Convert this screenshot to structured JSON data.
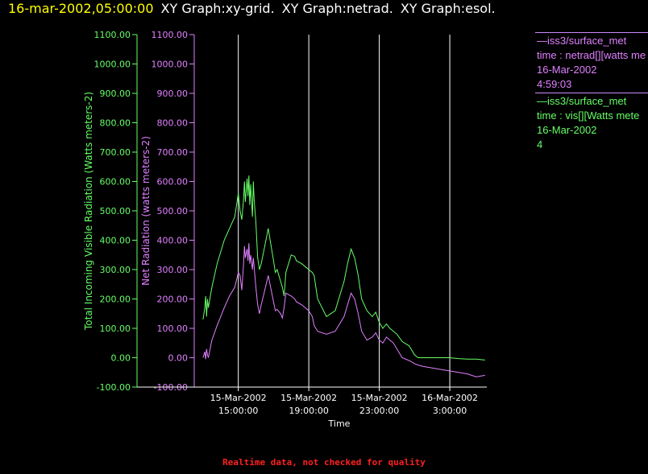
{
  "header": {
    "timestamp": "16-mar-2002,05:00:00",
    "segments": [
      "XY Graph:xy-grid.",
      "XY Graph:netrad.",
      "XY Graph:esol."
    ]
  },
  "legend": [
    {
      "line1": "iss3/surface_met",
      "line2": "time : netrad[][watts me",
      "line3": "16-Mar-2002",
      "line4": "4:59:03",
      "color": "#e080ff"
    },
    {
      "line1": "iss3/surface_met",
      "line2": "time : vis[][Watts mete",
      "line3": "16-Mar-2002",
      "line4": "4",
      "color": "#66ff66"
    }
  ],
  "footer": "Realtime data, not checked for quality",
  "chart_data": {
    "type": "line",
    "xlabel": "Time",
    "x_ticks": [
      {
        "hours": 0,
        "line1": "15-Mar-2002",
        "line2": "15:00:00"
      },
      {
        "hours": 4,
        "line1": "15-Mar-2002",
        "line2": "19:00:00"
      },
      {
        "hours": 8,
        "line1": "15-Mar-2002",
        "line2": "23:00:00"
      },
      {
        "hours": 12,
        "line1": "16-Mar-2002",
        "line2": "3:00:00"
      }
    ],
    "xlim_hours": [
      -2.5,
      14.1
    ],
    "ylim": [
      -100,
      1100
    ],
    "y_ticks": [
      "-100.00",
      "0.00",
      "100.00",
      "200.00",
      "300.00",
      "400.00",
      "500.00",
      "600.00",
      "700.00",
      "800.00",
      "900.00",
      "1000.00",
      "1100.00"
    ],
    "vertical_gridlines_hours": [
      0,
      4,
      8,
      12
    ],
    "left_axis": {
      "label": "Total Incoming Visible Radiation (Watts meters-2)",
      "color": "#66ff66"
    },
    "right_axis": {
      "label": "Net Radiation (watts meters-2)",
      "color": "#e080ff"
    },
    "series": [
      {
        "name": "vis",
        "color": "#66ff66",
        "x_hours": [
          -2.0,
          -1.9,
          -1.85,
          -1.8,
          -1.75,
          -1.7,
          -1.5,
          -1.2,
          -0.8,
          -0.5,
          -0.2,
          0.0,
          0.1,
          0.2,
          0.3,
          0.35,
          0.4,
          0.5,
          0.55,
          0.6,
          0.65,
          0.7,
          0.8,
          0.85,
          0.9,
          1.0,
          1.1,
          1.2,
          1.3,
          1.5,
          1.7,
          2.0,
          2.1,
          2.2,
          2.4,
          2.5,
          2.6,
          2.7,
          3.0,
          3.2,
          3.3,
          3.6,
          4.0,
          4.2,
          4.3,
          4.5,
          5.0,
          5.5,
          6.0,
          6.2,
          6.4,
          6.6,
          6.8,
          7.0,
          7.3,
          7.6,
          7.8,
          8.0,
          8.2,
          8.4,
          8.6,
          8.8,
          9.0,
          9.3,
          9.7,
          10.0,
          10.2,
          10.5,
          11.0,
          11.5,
          12.0,
          12.5,
          13.0,
          13.5,
          14.0
        ],
        "y": [
          130,
          170,
          210,
          140,
          200,
          170,
          240,
          320,
          400,
          440,
          480,
          560,
          500,
          470,
          540,
          600,
          530,
          610,
          550,
          620,
          520,
          590,
          480,
          600,
          540,
          460,
          340,
          300,
          320,
          380,
          440,
          330,
          290,
          300,
          260,
          240,
          210,
          290,
          350,
          345,
          330,
          320,
          300,
          290,
          280,
          200,
          140,
          160,
          260,
          320,
          370,
          340,
          280,
          200,
          160,
          140,
          155,
          120,
          100,
          115,
          100,
          90,
          80,
          55,
          40,
          10,
          0,
          0,
          0,
          0,
          0,
          -3,
          -5,
          -5,
          -8
        ]
      },
      {
        "name": "netrad",
        "color": "#e080ff",
        "x_hours": [
          -2.0,
          -1.9,
          -1.85,
          -1.8,
          -1.75,
          -1.7,
          -1.5,
          -1.2,
          -0.8,
          -0.5,
          -0.2,
          0.0,
          0.1,
          0.2,
          0.3,
          0.35,
          0.4,
          0.5,
          0.55,
          0.6,
          0.65,
          0.7,
          0.8,
          0.85,
          0.9,
          1.0,
          1.1,
          1.2,
          1.3,
          1.5,
          1.7,
          2.0,
          2.1,
          2.2,
          2.4,
          2.5,
          2.6,
          2.7,
          3.0,
          3.2,
          3.3,
          3.6,
          4.0,
          4.2,
          4.3,
          4.5,
          5.0,
          5.5,
          6.0,
          6.2,
          6.4,
          6.6,
          6.8,
          7.0,
          7.3,
          7.6,
          7.8,
          8.0,
          8.2,
          8.4,
          8.6,
          8.8,
          9.0,
          9.3,
          9.7,
          10.0,
          10.2,
          10.5,
          11.0,
          11.5,
          12.0,
          12.5,
          13.0,
          13.5,
          14.0
        ],
        "y": [
          0,
          20,
          -5,
          30,
          10,
          0,
          60,
          110,
          170,
          210,
          240,
          290,
          280,
          230,
          320,
          380,
          340,
          370,
          330,
          390,
          320,
          350,
          300,
          340,
          310,
          240,
          180,
          150,
          180,
          230,
          280,
          190,
          160,
          165,
          150,
          135,
          170,
          220,
          210,
          200,
          190,
          180,
          160,
          140,
          110,
          90,
          80,
          90,
          140,
          180,
          220,
          200,
          150,
          90,
          60,
          70,
          85,
          60,
          50,
          70,
          60,
          50,
          30,
          0,
          -10,
          -20,
          -25,
          -30,
          -35,
          -40,
          -45,
          -50,
          -55,
          -65,
          -60
        ]
      }
    ]
  }
}
